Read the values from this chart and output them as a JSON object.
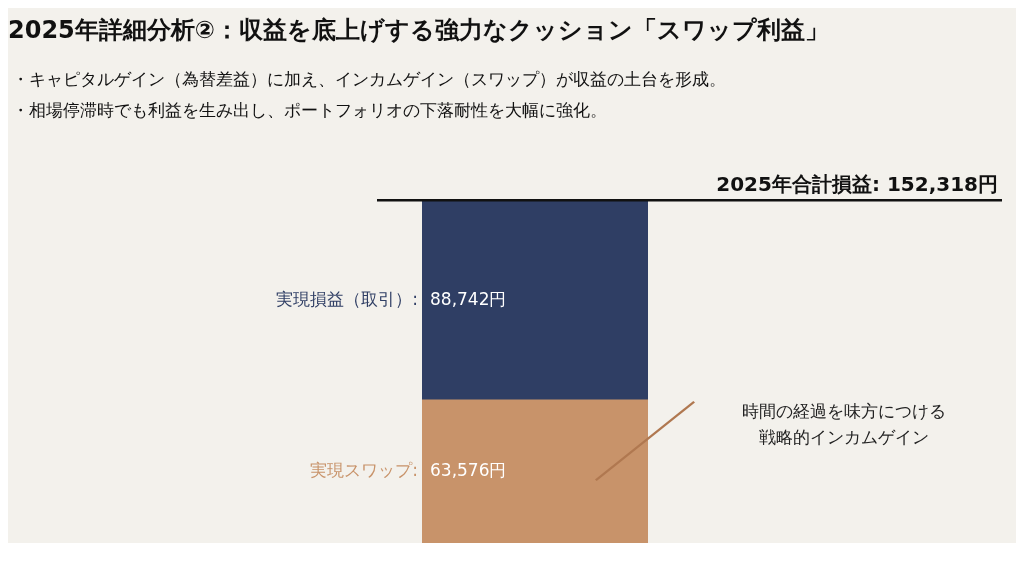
{
  "chart_data": {
    "type": "bar",
    "title": "2025年詳細分析②：収益を底上げする強力なクッション「スワップ利益」",
    "subtitle": "・キャピタルゲイン（為替差益）に加え、インカムゲイン（スワップ）が収益の土台を形成。",
    "categories": [
      null
    ],
    "stacked": true,
    "series": [
      {
        "name": "実現スワップ:",
        "color": "#c8936a",
        "values": [
          63576
        ],
        "value_labels": [
          "63,576円"
        ]
      },
      {
        "name": "実現損益（取引）:",
        "color": "#2f3e64",
        "values": [
          88742
        ],
        "value_labels": [
          "88,742円"
        ]
      }
    ],
    "ref_lines": [
      {
        "axis": "y",
        "value": 152318,
        "label": "2025年合計損益: 152,318円",
        "color": "#111111"
      }
    ],
    "annotations": [
      "・相場停滞時でも利益を生み出し、ポートフォリオの下落耐性を大幅に強化。",
      "時間の経過を味方につける戦略的インカムゲイン"
    ]
  }
}
